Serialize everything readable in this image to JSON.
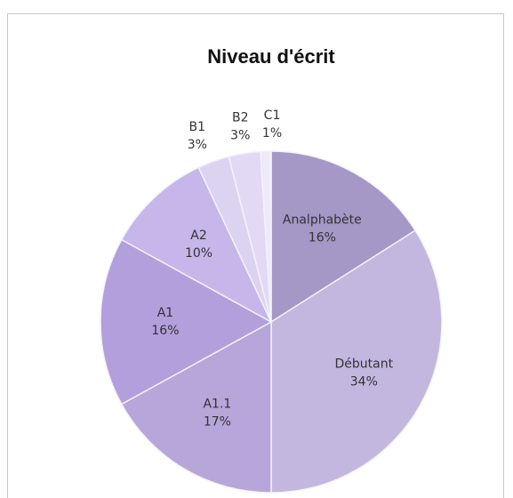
{
  "chart_data": {
    "type": "pie",
    "title": "Niveau d'écrit",
    "categories": [
      "Analphabète",
      "Débutant",
      "A1.1",
      "A1",
      "A2",
      "B1",
      "B2",
      "C1"
    ],
    "values": [
      16,
      34,
      17,
      16,
      10,
      3,
      3,
      1
    ],
    "value_labels": [
      "16%",
      "34%",
      "17%",
      "16%",
      "10%",
      "3%",
      "3%",
      "1%"
    ],
    "colors": [
      "#a597c6",
      "#c3b7e0",
      "#b6a6d9",
      "#b29fdc",
      "#c6b6ea",
      "#dcd3f1",
      "#e2daf4",
      "#eeeaf9"
    ]
  }
}
